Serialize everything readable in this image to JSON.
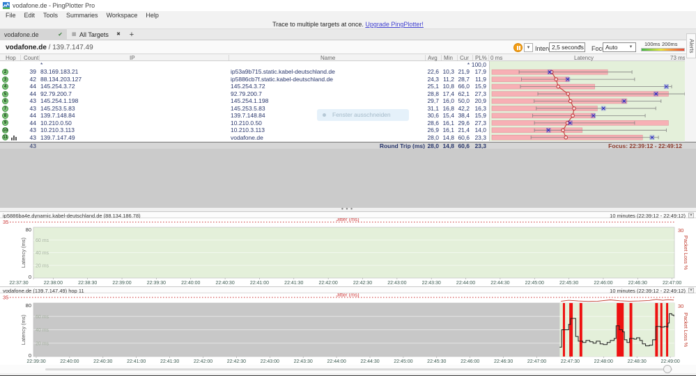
{
  "window": {
    "title": "vodafone.de - PingPlotter Pro"
  },
  "menu": [
    "File",
    "Edit",
    "Tools",
    "Summaries",
    "Workspace",
    "Help"
  ],
  "promo": {
    "text": "Trace to multiple targets at once. ",
    "link": "Upgrade PingPlotter!"
  },
  "tabs": {
    "active": "vodafone.de",
    "active_check": "✔",
    "summary_tab": "All Targets",
    "summary_icon": "▦",
    "close": "✖",
    "new_tab": "+"
  },
  "alerts_tab": "Alerts",
  "target": {
    "host": "vodafone.de",
    "sep": " / ",
    "ip": "139.7.147.49"
  },
  "controls": {
    "interval_label": "Interval",
    "interval_value": "2,5 seconds",
    "focus_label": "Focus",
    "focus_value": "Auto",
    "legend_100": "100ms",
    "legend_200": "200ms"
  },
  "table": {
    "headers": {
      "hop": "Hop",
      "count": "Count",
      "ip": "IP",
      "name": "Name",
      "avg": "Avg",
      "min": "Min",
      "cur": "Cur",
      "pl": "PL%"
    },
    "latency_axis": {
      "left": "0 ms",
      "title": "Latency",
      "right": "73 ms"
    },
    "rows": [
      {
        "hop": "",
        "count": "",
        "ip": "*",
        "name": "",
        "avg": "",
        "min": "",
        "cur": "*",
        "pl": "100,0"
      },
      {
        "hop": "2",
        "count": "39",
        "ip": "83.169.183.21",
        "name": "ip53a9b715.static.kabel-deutschland.de",
        "avg": "22,6",
        "min": "10,3",
        "cur": "21,9",
        "pl": "17,9"
      },
      {
        "hop": "3",
        "count": "42",
        "ip": "88.134.203.127",
        "name": "ip5886cb7f.static.kabel-deutschland.de",
        "avg": "24,3",
        "min": "11,2",
        "cur": "28,7",
        "pl": "11,9"
      },
      {
        "hop": "4",
        "count": "44",
        "ip": "145.254.3.72",
        "name": "145.254.3.72",
        "avg": "25,1",
        "min": "10,8",
        "cur": "66,0",
        "pl": "15,9"
      },
      {
        "hop": "5",
        "count": "44",
        "ip": "92.79.200.7",
        "name": "92.79.200.7",
        "avg": "28,8",
        "min": "17,4",
        "cur": "62,1",
        "pl": "27,3"
      },
      {
        "hop": "6",
        "count": "43",
        "ip": "145.254.1.198",
        "name": "145.254.1.198",
        "avg": "29,7",
        "min": "16,0",
        "cur": "50,0",
        "pl": "20,9"
      },
      {
        "hop": "7",
        "count": "43",
        "ip": "145.253.5.83",
        "name": "145.253.5.83",
        "avg": "31,1",
        "min": "16,8",
        "cur": "42,2",
        "pl": "16,3"
      },
      {
        "hop": "8",
        "count": "44",
        "ip": "139.7.148.84",
        "name": "139.7.148.84",
        "avg": "30,6",
        "min": "15,4",
        "cur": "38,4",
        "pl": "15,9"
      },
      {
        "hop": "9",
        "count": "44",
        "ip": "10.210.0.50",
        "name": "10.210.0.50",
        "avg": "28,6",
        "min": "16,1",
        "cur": "29,6",
        "pl": "27,3"
      },
      {
        "hop": "10",
        "count": "43",
        "ip": "10.210.3.113",
        "name": "10.210.3.113",
        "avg": "26,9",
        "min": "16,1",
        "cur": "21,4",
        "pl": "14,0"
      },
      {
        "hop": "11",
        "count": "43",
        "ip": "139.7.147.49",
        "name": "vodafone.de",
        "avg": "28,0",
        "min": "14,8",
        "cur": "60,6",
        "pl": "23,3",
        "graph_icon": true
      }
    ],
    "summary": {
      "count": "43",
      "label": "Round Trip (ms)",
      "avg": "28,0",
      "min": "14,8",
      "cur": "60,6",
      "pl": "23,3"
    },
    "focus_text": "Focus: 22:39:12 - 22:49:12"
  },
  "overlay": {
    "text": "Fenster ausschneiden"
  },
  "colors": {
    "accent_orange": "#f39c12",
    "loss_red": "#ee1111",
    "trace_black": "#1a1a1a",
    "jitter_red": "#c0392b",
    "bar_pink": "#f7b0b5",
    "green_bg": "#e4f0da",
    "nodata_gray": "#c8c8c8",
    "link_blue": "#4040d0"
  },
  "chart_data": [
    {
      "type": "bar",
      "title": "Latency",
      "orientation": "horizontal",
      "xlim": [
        0,
        73
      ],
      "unit": "ms",
      "note": "per-hop: pink bar = packet-loss scaled bar, whisker = min..max, blue x = current, red circle = average",
      "rows": [
        {
          "hop": 2,
          "bar": 43.8,
          "min": 10.3,
          "max": 53,
          "cur": 21.9,
          "avg": 22.6
        },
        {
          "hop": 3,
          "bar": 29.1,
          "min": 11.2,
          "max": 54,
          "cur": 28.7,
          "avg": 24.3
        },
        {
          "hop": 4,
          "bar": 38.9,
          "min": 10.8,
          "max": 68,
          "cur": 66.0,
          "avg": 25.1
        },
        {
          "hop": 5,
          "bar": 66.8,
          "min": 17.4,
          "max": 73,
          "cur": 62.1,
          "avg": 28.8
        },
        {
          "hop": 6,
          "bar": 51.1,
          "min": 16.0,
          "max": 64,
          "cur": 50.0,
          "avg": 29.7
        },
        {
          "hop": 7,
          "bar": 39.9,
          "min": 16.8,
          "max": 62,
          "cur": 42.2,
          "avg": 31.1
        },
        {
          "hop": 8,
          "bar": 38.9,
          "min": 15.4,
          "max": 58,
          "cur": 38.4,
          "avg": 30.6
        },
        {
          "hop": 9,
          "bar": 66.8,
          "min": 16.1,
          "max": 54,
          "cur": 29.6,
          "avg": 28.6
        },
        {
          "hop": 10,
          "bar": 34.2,
          "min": 16.1,
          "max": 66,
          "cur": 21.4,
          "avg": 26.9
        },
        {
          "hop": 11,
          "bar": 57.0,
          "min": 14.8,
          "max": 63,
          "cur": 60.6,
          "avg": 28.0
        }
      ]
    },
    {
      "type": "line",
      "title": "ip5886ba4e.dynamic.kabel-deutschland.de (88.134.186.78)",
      "range_label": "10 minutes (22:39:12 - 22:49:12)",
      "ylabel": "Latency (ms)",
      "ylim": [
        0,
        80
      ],
      "y_top_label": "80",
      "y_bottom_label": "0",
      "y2label": "Packet Loss %",
      "y2lim": [
        0,
        30
      ],
      "y2_top_label": "30",
      "jitter_label": "Jitter (ms)",
      "jitter_max_label": "35",
      "gridlines": [
        "60 ms",
        "40 ms",
        "20 ms"
      ],
      "x_ticks": [
        "22:37:30",
        "22:38:00",
        "22:38:30",
        "22:39:00",
        "22:39:30",
        "22:40:00",
        "22:40:30",
        "22:41:00",
        "22:41:30",
        "22:42:00",
        "22:42:30",
        "22:43:00",
        "22:43:30",
        "22:44:00",
        "22:44:30",
        "22:45:00",
        "22:45:30",
        "22:46:00",
        "22:46:30",
        "22:47:00"
      ],
      "tick_start_x": 27,
      "tick_step_x": 49.35,
      "series": []
    },
    {
      "type": "line",
      "title": "vodafone.de (139.7.147.49) hop 11",
      "range_label": "10 minutes (22:39:12 - 22:49:12)",
      "ylabel": "Latency (ms)",
      "ylim": [
        0,
        80
      ],
      "y_top_label": "80",
      "y_bottom_label": "0",
      "y2label": "Packet Loss %",
      "y2lim": [
        0,
        30
      ],
      "y2_top_label": "30",
      "jitter_label": "Jitter (ms)",
      "jitter_max_label": "35",
      "gridlines": [
        "60 ms",
        "40 ms",
        "20 ms"
      ],
      "x_ticks": [
        "22:39:30",
        "22:40:00",
        "22:40:30",
        "22:41:00",
        "22:41:30",
        "22:42:00",
        "22:42:30",
        "22:43:00",
        "22:43:30",
        "22:44:00",
        "22:44:30",
        "22:45:00",
        "22:45:30",
        "22:46:00",
        "22:46:30",
        "22:47:00",
        "22:47:30",
        "22:48:00",
        "22:48:30",
        "22:49:00"
      ],
      "tick_start_x": 52,
      "tick_step_x": 47.9,
      "data_start_frac": 0.821,
      "loss_bars": [
        [
          0.826,
          0.0033
        ],
        [
          0.836,
          0.0054
        ],
        [
          0.852,
          0.0043
        ],
        [
          0.91,
          0.0109
        ],
        [
          0.93,
          0.0043
        ],
        [
          0.97,
          0.0043
        ],
        [
          0.978,
          0.0033
        ],
        [
          0.987,
          0.0033
        ]
      ],
      "latency_trace": [
        [
          0.821,
          14
        ],
        [
          0.824,
          40
        ],
        [
          0.832,
          40
        ],
        [
          0.835,
          48
        ],
        [
          0.838,
          57
        ],
        [
          0.844,
          57
        ],
        [
          0.846,
          30
        ],
        [
          0.85,
          23
        ],
        [
          0.857,
          21
        ],
        [
          0.862,
          24
        ],
        [
          0.868,
          22
        ],
        [
          0.873,
          20
        ],
        [
          0.878,
          23
        ],
        [
          0.884,
          19
        ],
        [
          0.889,
          18
        ],
        [
          0.895,
          21
        ],
        [
          0.9,
          24
        ],
        [
          0.906,
          27
        ],
        [
          0.909,
          46
        ],
        [
          0.914,
          40
        ],
        [
          0.919,
          37
        ],
        [
          0.922,
          25
        ],
        [
          0.926,
          21
        ],
        [
          0.93,
          27
        ],
        [
          0.937,
          26
        ],
        [
          0.941,
          28
        ],
        [
          0.946,
          24
        ],
        [
          0.95,
          19
        ],
        [
          0.955,
          16
        ],
        [
          0.961,
          17
        ],
        [
          0.966,
          25
        ],
        [
          0.971,
          45
        ],
        [
          0.978,
          44
        ],
        [
          0.984,
          45
        ],
        [
          0.988,
          44
        ],
        [
          0.99,
          50
        ],
        [
          0.992,
          64
        ],
        [
          0.996,
          62
        ],
        [
          0.999,
          60
        ]
      ],
      "jitter_trace": [
        [
          0.823,
          5
        ],
        [
          0.835,
          9
        ],
        [
          0.85,
          6
        ],
        [
          0.865,
          4
        ],
        [
          0.88,
          5
        ],
        [
          0.9,
          11
        ],
        [
          0.915,
          7
        ],
        [
          0.93,
          5
        ],
        [
          0.945,
          6
        ],
        [
          0.96,
          8
        ],
        [
          0.972,
          13
        ],
        [
          0.982,
          9
        ],
        [
          0.99,
          12
        ],
        [
          0.999,
          10
        ]
      ]
    }
  ]
}
